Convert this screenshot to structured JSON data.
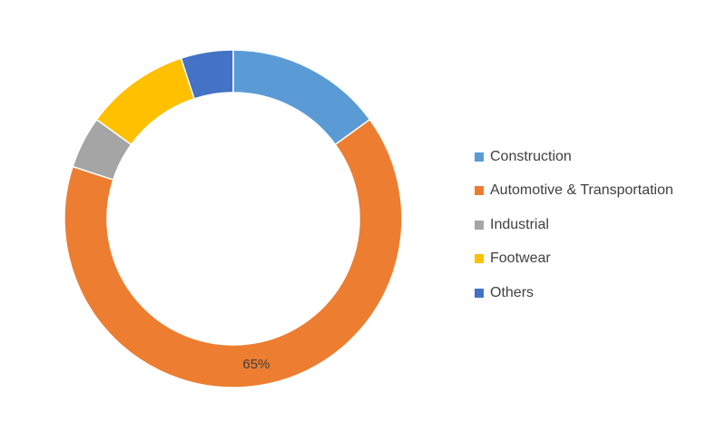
{
  "chart_data": {
    "type": "pie",
    "variant": "donut",
    "title": "",
    "categories": [
      "Construction",
      "Automotive & Transportation",
      "Industrial",
      "Footwear",
      "Others"
    ],
    "values": [
      15,
      65,
      5,
      10,
      5
    ],
    "unit": "%",
    "colors": [
      "#5B9BD5",
      "#ED7D31",
      "#A5A5A5",
      "#FFC000",
      "#4472C4"
    ],
    "data_labels": [
      {
        "category": "Automotive & Transportation",
        "text": "65%"
      }
    ],
    "legend": {
      "placement": "right",
      "entries": [
        {
          "label": "Construction",
          "color": "#5B9BD5"
        },
        {
          "label": "Automotive & Transportation",
          "color": "#ED7D31"
        },
        {
          "label": "Industrial",
          "color": "#A5A5A5"
        },
        {
          "label": "Footwear",
          "color": "#FFC000"
        },
        {
          "label": "Others",
          "color": "#4472C4"
        }
      ]
    }
  }
}
